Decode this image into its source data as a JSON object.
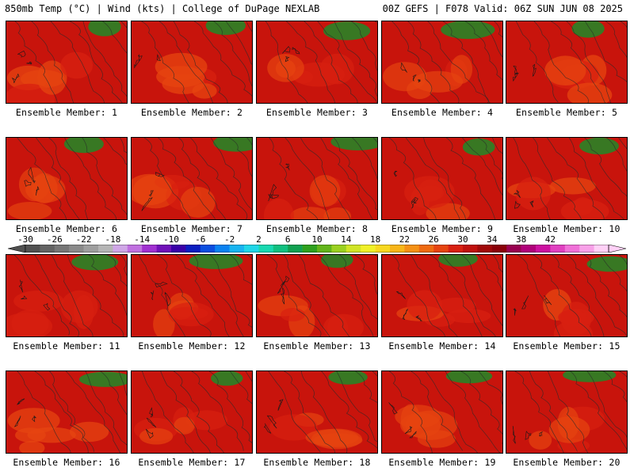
{
  "header": {
    "left": "850mb Temp (°C) | Wind (kts) | College of DuPage NEXLAB",
    "right": "00Z GEFS | F078 Valid: 06Z SUN JUN 08 2025"
  },
  "colorbar": {
    "labels": [
      "-30",
      "-26",
      "-22",
      "-18",
      "-14",
      "-10",
      "-6",
      "-2",
      "2",
      "6",
      "10",
      "14",
      "18",
      "22",
      "26",
      "30",
      "34",
      "38",
      "42"
    ],
    "colors": [
      "#505050",
      "#636363",
      "#767676",
      "#8a8a8a",
      "#9e9e9e",
      "#b5b5b5",
      "#cfa6e6",
      "#c070e0",
      "#a030d0",
      "#7010b8",
      "#3a00a8",
      "#0a1ec0",
      "#0a4ee0",
      "#0a82f0",
      "#18b4f0",
      "#20d6e8",
      "#18d8b0",
      "#10c080",
      "#10a050",
      "#2ea01e",
      "#62b41a",
      "#9ad020",
      "#d0e426",
      "#f0f028",
      "#f7d820",
      "#f7b518",
      "#f49014",
      "#ee6a10",
      "#e64410",
      "#d82010",
      "#c0100c",
      "#a00808",
      "#8a0008",
      "#980050",
      "#b0007a",
      "#cc10a0",
      "#e040c0",
      "#f070d8",
      "#f8a0e8",
      "#ffd0f6"
    ]
  },
  "panels": [
    {
      "label": "Ensemble Member: 1",
      "warm": 0.75
    },
    {
      "label": "Ensemble Member: 2",
      "warm": 0.8
    },
    {
      "label": "Ensemble Member: 3",
      "warm": 0.6
    },
    {
      "label": "Ensemble Member: 4",
      "warm": 0.55
    },
    {
      "label": "Ensemble Member: 5",
      "warm": 0.8
    },
    {
      "label": "Ensemble Member: 6",
      "warm": 0.55
    },
    {
      "label": "Ensemble Member: 7",
      "warm": 0.6
    },
    {
      "label": "Ensemble Member: 8",
      "warm": 0.5
    },
    {
      "label": "Ensemble Member: 9",
      "warm": 0.65
    },
    {
      "label": "Ensemble Member: 10",
      "warm": 0.75
    },
    {
      "label": "Ensemble Member: 11",
      "warm": 0.6
    },
    {
      "label": "Ensemble Member: 12",
      "warm": 0.55
    },
    {
      "label": "Ensemble Member: 13",
      "warm": 0.6
    },
    {
      "label": "Ensemble Member: 14",
      "warm": 0.7
    },
    {
      "label": "Ensemble Member: 15",
      "warm": 0.85
    },
    {
      "label": "Ensemble Member: 16",
      "warm": 0.7
    },
    {
      "label": "Ensemble Member: 17",
      "warm": 0.6
    },
    {
      "label": "Ensemble Member: 18",
      "warm": 0.65
    },
    {
      "label": "Ensemble Member: 19",
      "warm": 0.55
    },
    {
      "label": "Ensemble Member: 20",
      "warm": 0.65
    }
  ]
}
